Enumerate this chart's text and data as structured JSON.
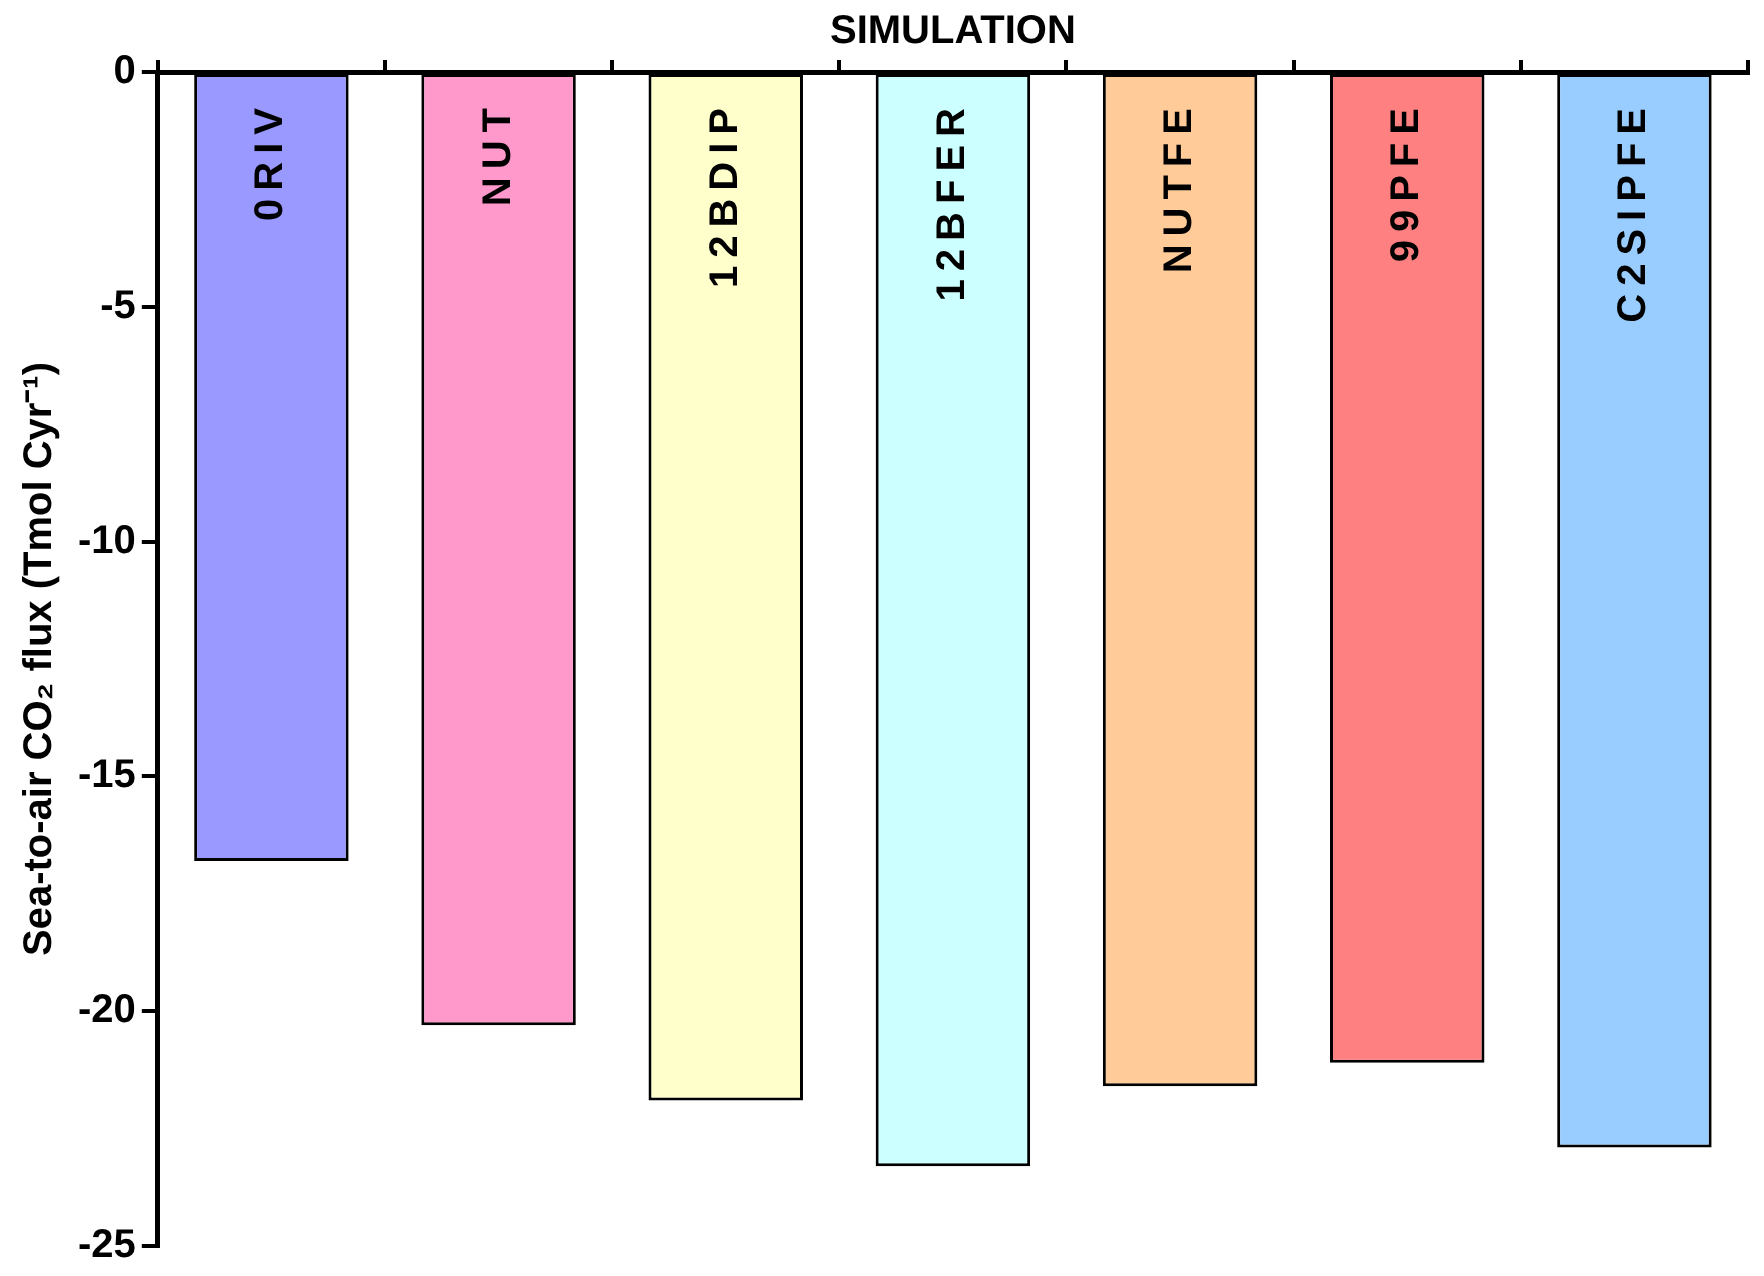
{
  "chart_data": {
    "type": "bar",
    "xlabel": "SIMULATION",
    "ylabel": "Sea-to-air CO₂ flux (Tmol Cyr⁻¹)",
    "categories": [
      "0RIV",
      "NUT",
      "12BDIP",
      "12BFER",
      "NUTFE",
      "99PFE",
      "C2SIPFE"
    ],
    "values": [
      -16.8,
      -20.3,
      -21.9,
      -23.3,
      -21.6,
      -21.1,
      -22.9
    ],
    "colors": [
      "#9999ff",
      "#ff99cc",
      "#ffffcc",
      "#ccffff",
      "#ffcc99",
      "#ff8080",
      "#99ccff"
    ],
    "ylim": [
      -25,
      0
    ],
    "yticks": [
      -25,
      -20,
      -15,
      -10,
      -5,
      0
    ],
    "grid": false,
    "legend": false
  }
}
